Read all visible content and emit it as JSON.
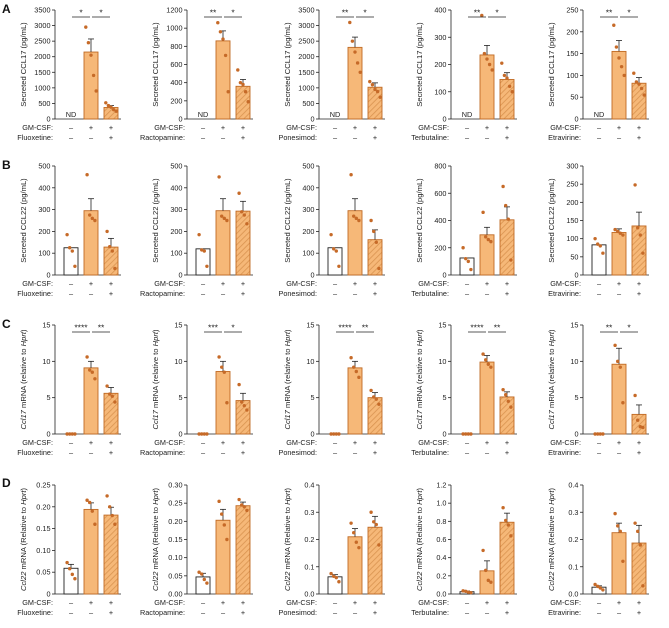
{
  "colors": {
    "orange": "#f6b878",
    "orange_edge": "#c06a24",
    "dot": "#c66a28",
    "white_bar": "#ffffff",
    "dark_edge": "#222222",
    "hatch": "#d99350"
  },
  "panel_labels": [
    "A",
    "B",
    "C",
    "D"
  ],
  "row_labels": {
    "gmcsf": "GM-CSF:"
  },
  "signs": {
    "minus": "–",
    "plus": "+"
  },
  "nd_label": "ND",
  "chart_data": [
    {
      "type": "bar",
      "panel": "A",
      "drug": "Fluoxetine:",
      "ylabel": "Secreted CCL17 (pg/mL)",
      "ylabel_italic": "",
      "ylim": [
        0,
        3500
      ],
      "ticks": [
        "0",
        "500",
        "1000",
        "1500",
        "2000",
        "2500",
        "3000",
        "3500"
      ],
      "categories": [
        "GM-CSF –, Drug –",
        "GM-CSF +, Drug –",
        "GM-CSF +, Drug +"
      ],
      "values": [
        0,
        2150,
        370
      ],
      "errors": [
        0,
        420,
        60
      ],
      "points": [
        [],
        [
          2950,
          2450,
          2050,
          1400,
          900
        ],
        [
          520,
          430,
          380,
          300,
          250
        ]
      ],
      "nd": true,
      "sig": [
        [
          "*",
          1,
          2
        ],
        [
          "*",
          2,
          3
        ]
      ]
    },
    {
      "type": "bar",
      "panel": "A",
      "drug": "Ractopamine:",
      "ylabel": "Secreted CCL17 (pg/mL)",
      "ylabel_italic": "",
      "ylim": [
        0,
        1200
      ],
      "ticks": [
        "0",
        "200",
        "400",
        "600",
        "800",
        "1000",
        "1200"
      ],
      "categories": [
        "GM-CSF –, Drug –",
        "GM-CSF +, Drug –",
        "GM-CSF +, Drug +"
      ],
      "values": [
        0,
        860,
        360
      ],
      "errors": [
        0,
        110,
        75
      ],
      "points": [
        [],
        [
          1060,
          960,
          880,
          700,
          300
        ],
        [
          540,
          400,
          380,
          300,
          190
        ]
      ],
      "nd": true,
      "sig": [
        [
          "**",
          1,
          2
        ],
        [
          "*",
          2,
          3
        ]
      ]
    },
    {
      "type": "bar",
      "panel": "A",
      "drug": "Ponesimod:",
      "ylabel": "Secreted CCL17 (pg/mL)",
      "ylabel_italic": "",
      "ylim": [
        0,
        3500
      ],
      "ticks": [
        "0",
        "500",
        "1000",
        "1500",
        "2000",
        "2500",
        "3000",
        "3500"
      ],
      "categories": [
        "GM-CSF –, Drug –",
        "GM-CSF +, Drug –",
        "GM-CSF +, Drug +"
      ],
      "values": [
        0,
        2300,
        1020
      ],
      "errors": [
        0,
        330,
        140
      ],
      "points": [
        [],
        [
          3100,
          2500,
          2150,
          1800,
          1500
        ],
        [
          1200,
          1100,
          950,
          880,
          700
        ]
      ],
      "nd": true,
      "sig": [
        [
          "**",
          1,
          2
        ],
        [
          "*",
          2,
          3
        ]
      ]
    },
    {
      "type": "bar",
      "panel": "A",
      "drug": "Terbutaline:",
      "ylabel": "Secreted CCL17 (pg/mL)",
      "ylabel_italic": "",
      "ylim": [
        0,
        400
      ],
      "ticks": [
        "0",
        "100",
        "200",
        "300",
        "400"
      ],
      "categories": [
        "GM-CSF –, Drug –",
        "GM-CSF +, Drug –",
        "GM-CSF +, Drug +"
      ],
      "values": [
        0,
        235,
        145
      ],
      "errors": [
        0,
        35,
        25
      ],
      "points": [
        [],
        [
          380,
          240,
          220,
          200,
          180
        ],
        [
          205,
          160,
          150,
          120,
          100
        ]
      ],
      "nd": true,
      "sig": [
        [
          "**",
          1,
          2
        ],
        [
          "*",
          2,
          3
        ]
      ]
    },
    {
      "type": "bar",
      "panel": "A",
      "drug": "Etravirine:",
      "ylabel": "Secreted CCL17 (pg/mL)",
      "ylabel_italic": "",
      "ylim": [
        0,
        250
      ],
      "ticks": [
        "0",
        "50",
        "100",
        "150",
        "200",
        "250"
      ],
      "categories": [
        "GM-CSF –, Drug –",
        "GM-CSF +, Drug –",
        "GM-CSF +, Drug +"
      ],
      "values": [
        0,
        155,
        82
      ],
      "errors": [
        0,
        25,
        13
      ],
      "points": [
        [],
        [
          215,
          165,
          140,
          120,
          100
        ],
        [
          105,
          85,
          80,
          70,
          55
        ]
      ],
      "nd": true,
      "sig": [
        [
          "**",
          1,
          2
        ],
        [
          "*",
          2,
          3
        ]
      ]
    },
    {
      "type": "bar",
      "panel": "B",
      "drug": "Fluoxetine:",
      "ylabel": "Secreted CCL22 (pg/mL)",
      "ylabel_italic": "",
      "ylim": [
        0,
        500
      ],
      "ticks": [
        "0",
        "100",
        "200",
        "300",
        "400",
        "500"
      ],
      "categories": [
        "GM-CSF –, Drug –",
        "GM-CSF +, Drug –",
        "GM-CSF +, Drug +"
      ],
      "values": [
        125,
        295,
        128
      ],
      "errors": [
        0,
        55,
        40
      ],
      "points": [
        [
          185,
          125,
          110,
          40
        ],
        [
          460,
          275,
          260,
          250
        ],
        [
          200,
          130,
          110,
          30
        ]
      ],
      "nd": false,
      "sig": []
    },
    {
      "type": "bar",
      "panel": "B",
      "drug": "Ractopamine:",
      "ylabel": "Secreted CCL22 (pg/mL)",
      "ylabel_italic": "",
      "ylim": [
        0,
        500
      ],
      "ticks": [
        "0",
        "100",
        "200",
        "300",
        "400",
        "500"
      ],
      "categories": [
        "GM-CSF –, Drug –",
        "GM-CSF +, Drug –",
        "GM-CSF +, Drug +"
      ],
      "values": [
        120,
        295,
        293
      ],
      "errors": [
        0,
        55,
        45
      ],
      "points": [
        [
          185,
          115,
          110,
          40
        ],
        [
          450,
          270,
          260,
          250
        ],
        [
          375,
          290,
          275,
          235
        ]
      ],
      "nd": false,
      "sig": []
    },
    {
      "type": "bar",
      "panel": "B",
      "drug": "Ponesimod:",
      "ylabel": "Secreted CCL22 (pg/mL)",
      "ylabel_italic": "",
      "ylim": [
        0,
        500
      ],
      "ticks": [
        "0",
        "100",
        "200",
        "300",
        "400",
        "500"
      ],
      "categories": [
        "GM-CSF –, Drug –",
        "GM-CSF +, Drug –",
        "GM-CSF +, Drug +"
      ],
      "values": [
        125,
        295,
        162
      ],
      "errors": [
        0,
        55,
        45
      ],
      "points": [
        [
          185,
          120,
          110,
          40
        ],
        [
          460,
          270,
          260,
          250
        ],
        [
          250,
          200,
          150,
          30
        ]
      ],
      "nd": false,
      "sig": []
    },
    {
      "type": "bar",
      "panel": "B",
      "drug": "Terbutaline:",
      "ylabel": "Secreted CCL22 (pg/mL)",
      "ylabel_italic": "",
      "ylim": [
        0,
        800
      ],
      "ticks": [
        "0",
        "200",
        "400",
        "600",
        "800"
      ],
      "categories": [
        "GM-CSF –, Drug –",
        "GM-CSF +, Drug –",
        "GM-CSF +, Drug +"
      ],
      "values": [
        125,
        295,
        405
      ],
      "errors": [
        0,
        55,
        95
      ],
      "points": [
        [
          200,
          120,
          100,
          40
        ],
        [
          460,
          280,
          260,
          245
        ],
        [
          650,
          510,
          410,
          110
        ]
      ],
      "nd": false,
      "sig": []
    },
    {
      "type": "bar",
      "panel": "B",
      "drug": "Etravirine:",
      "ylabel": "Secreted CCL22 (pg/mL)",
      "ylabel_italic": "",
      "ylim": [
        0,
        300
      ],
      "ticks": [
        "0",
        "50",
        "100",
        "150",
        "200",
        "250",
        "300"
      ],
      "categories": [
        "GM-CSF –, Drug –",
        "GM-CSF +, Drug –",
        "GM-CSF +, Drug +"
      ],
      "values": [
        83,
        117,
        135
      ],
      "errors": [
        0,
        10,
        38
      ],
      "points": [
        [
          100,
          85,
          80,
          60
        ],
        [
          125,
          120,
          115,
          110
        ],
        [
          248,
          130,
          110,
          60
        ]
      ],
      "nd": false,
      "sig": []
    },
    {
      "type": "bar",
      "panel": "C",
      "drug": "Fluoxetine:",
      "ylabel": " mRNA (relative to ",
      "ylabel_italic": "Ccl17|Hprt",
      "ylim": [
        0,
        15
      ],
      "ticks": [
        "0",
        "5",
        "10",
        "15"
      ],
      "categories": [
        "GM-CSF –, Drug –",
        "GM-CSF +, Drug –",
        "GM-CSF +, Drug +"
      ],
      "values": [
        0,
        9.1,
        5.6
      ],
      "errors": [
        0,
        0.9,
        0.8
      ],
      "points": [
        [
          0,
          0,
          0,
          0
        ],
        [
          10.6,
          8.8,
          8.5,
          7.6
        ],
        [
          6.6,
          5.5,
          5.2,
          4.4
        ]
      ],
      "nd": false,
      "sig": [
        [
          "****",
          1,
          2
        ],
        [
          "**",
          2,
          3
        ]
      ]
    },
    {
      "type": "bar",
      "panel": "C",
      "drug": "Ractopamine:",
      "ylabel": " mRNA (relative to ",
      "ylabel_italic": "Ccl17|Hprt",
      "ylim": [
        0,
        15
      ],
      "ticks": [
        "0",
        "5",
        "10",
        "15"
      ],
      "categories": [
        "GM-CSF –, Drug –",
        "GM-CSF +, Drug –",
        "GM-CSF +, Drug +"
      ],
      "values": [
        0,
        8.6,
        4.6
      ],
      "errors": [
        0,
        1.4,
        1.0
      ],
      "points": [
        [
          0,
          0,
          0,
          0
        ],
        [
          10.6,
          9.2,
          8.5,
          4.3
        ],
        [
          6.8,
          4.4,
          3.9,
          3.3
        ]
      ],
      "nd": false,
      "sig": [
        [
          "***",
          1,
          2
        ],
        [
          "*",
          2,
          3
        ]
      ]
    },
    {
      "type": "bar",
      "panel": "C",
      "drug": "Ponesimod:",
      "ylabel": " mRNA (relative to ",
      "ylabel_italic": "Ccl17|Hprt",
      "ylim": [
        0,
        15
      ],
      "ticks": [
        "0",
        "5",
        "10",
        "15"
      ],
      "categories": [
        "GM-CSF –, Drug –",
        "GM-CSF +, Drug –",
        "GM-CSF +, Drug +"
      ],
      "values": [
        0,
        9.1,
        5.0
      ],
      "errors": [
        0,
        0.9,
        0.7
      ],
      "points": [
        [
          0,
          0,
          0,
          0
        ],
        [
          10.5,
          9.2,
          8.6,
          7.8
        ],
        [
          6.0,
          5.1,
          4.8,
          4.1
        ]
      ],
      "nd": false,
      "sig": [
        [
          "****",
          1,
          2
        ],
        [
          "**",
          2,
          3
        ]
      ]
    },
    {
      "type": "bar",
      "panel": "C",
      "drug": "Terbutaline:",
      "ylabel": " mRNA (relative to ",
      "ylabel_italic": "Ccl17|Hprt",
      "ylim": [
        0,
        15
      ],
      "ticks": [
        "0",
        "5",
        "10",
        "15"
      ],
      "categories": [
        "GM-CSF –, Drug –",
        "GM-CSF +, Drug –",
        "GM-CSF +, Drug +"
      ],
      "values": [
        0,
        9.9,
        5.1
      ],
      "errors": [
        0,
        0.9,
        0.7
      ],
      "points": [
        [
          0,
          0,
          0,
          0
        ],
        [
          11.0,
          10.2,
          9.6,
          9.2
        ],
        [
          6.1,
          5.4,
          4.5,
          3.7
        ]
      ],
      "nd": false,
      "sig": [
        [
          "****",
          1,
          2
        ],
        [
          "**",
          2,
          3
        ]
      ]
    },
    {
      "type": "bar",
      "panel": "C",
      "drug": "Etravirine:",
      "ylabel": " mRNA (relative to ",
      "ylabel_italic": "Ccl17|Hprt",
      "ylim": [
        0,
        15
      ],
      "ticks": [
        "0",
        "5",
        "10",
        "15"
      ],
      "categories": [
        "GM-CSF –, Drug –",
        "GM-CSF +, Drug –",
        "GM-CSF +, Drug +"
      ],
      "values": [
        0,
        9.6,
        2.7
      ],
      "errors": [
        0,
        2.2,
        1.3
      ],
      "points": [
        [
          0,
          0,
          0,
          0
        ],
        [
          12.2,
          10.0,
          9.2,
          4.3
        ],
        [
          5.3,
          1.9,
          1.0,
          0.9
        ]
      ],
      "nd": false,
      "sig": [
        [
          "**",
          1,
          2
        ],
        [
          "*",
          2,
          3
        ]
      ]
    },
    {
      "type": "bar",
      "panel": "D",
      "drug": "Fluoxetine:",
      "ylabel": " mRNA (Relative to ",
      "ylabel_italic": "Ccl22|Hprt",
      "ylim": [
        0,
        0.25
      ],
      "ticks": [
        "0",
        "0.05",
        "0.10",
        "0.15",
        "0.20",
        "0.25"
      ],
      "categories": [
        "GM-CSF –, Drug –",
        "GM-CSF +, Drug –",
        "GM-CSF +, Drug +"
      ],
      "values": [
        0.059,
        0.194,
        0.181
      ],
      "errors": [
        0.009,
        0.015,
        0.018
      ],
      "points": [
        [
          0.072,
          0.058,
          0.045,
          0.035
        ],
        [
          0.215,
          0.21,
          0.19,
          0.16
        ],
        [
          0.225,
          0.2,
          0.18,
          0.16
        ]
      ],
      "nd": false,
      "sig": []
    },
    {
      "type": "bar",
      "panel": "D",
      "drug": "Ractopamine:",
      "ylabel": " mRNA (Relative to ",
      "ylabel_italic": "Ccl22|Hprt",
      "ylim": [
        0,
        0.3
      ],
      "ticks": [
        "0.00",
        "0.05",
        "0.10",
        "0.15",
        "0.20",
        "0.25",
        "0.30"
      ],
      "categories": [
        "GM-CSF –, Drug –",
        "GM-CSF +, Drug –",
        "GM-CSF +, Drug +"
      ],
      "values": [
        0.047,
        0.203,
        0.243
      ],
      "errors": [
        0.01,
        0.03,
        0.01
      ],
      "points": [
        [
          0.06,
          0.055,
          0.04,
          0.03
        ],
        [
          0.255,
          0.22,
          0.19,
          0.15
        ],
        [
          0.26,
          0.245,
          0.24,
          0.23
        ]
      ],
      "nd": false,
      "sig": []
    },
    {
      "type": "bar",
      "panel": "D",
      "drug": "Ponesimod:",
      "ylabel": " mRNA (Relative to ",
      "ylabel_italic": "Ccl22|Hprt",
      "ylim": [
        0,
        0.4
      ],
      "ticks": [
        "0.0",
        "0.1",
        "0.2",
        "0.3",
        "0.4"
      ],
      "categories": [
        "GM-CSF –, Drug –",
        "GM-CSF +, Drug –",
        "GM-CSF +, Drug +"
      ],
      "values": [
        0.063,
        0.21,
        0.245
      ],
      "errors": [
        0.008,
        0.03,
        0.04
      ],
      "points": [
        [
          0.075,
          0.065,
          0.06,
          0.045
        ],
        [
          0.26,
          0.225,
          0.19,
          0.17
        ],
        [
          0.3,
          0.265,
          0.255,
          0.18
        ]
      ],
      "nd": false,
      "sig": []
    },
    {
      "type": "bar",
      "panel": "D",
      "drug": "Terbutaline:",
      "ylabel": " mRNA (Relative to ",
      "ylabel_italic": "Ccl22|Hprt",
      "ylim": [
        0,
        1.2
      ],
      "ticks": [
        "0.0",
        "0.2",
        "0.4",
        "0.6",
        "0.8",
        "1.0",
        "1.2"
      ],
      "categories": [
        "GM-CSF –, Drug –",
        "GM-CSF +, Drug –",
        "GM-CSF +, Drug +"
      ],
      "values": [
        0.025,
        0.255,
        0.79
      ],
      "errors": [
        0.008,
        0.11,
        0.1
      ],
      "points": [
        [
          0.035,
          0.03,
          0.02,
          0.015
        ],
        [
          0.48,
          0.26,
          0.15,
          0.13
        ],
        [
          0.95,
          0.81,
          0.76,
          0.64
        ]
      ],
      "nd": false,
      "sig": []
    },
    {
      "type": "bar",
      "panel": "D",
      "drug": "Etravirine:",
      "ylabel": " mRNA (Relative to ",
      "ylabel_italic": "Ccl22|Hprt",
      "ylim": [
        0,
        0.4
      ],
      "ticks": [
        "0.0",
        "0.1",
        "0.2",
        "0.3",
        "0.4"
      ],
      "categories": [
        "GM-CSF –, Drug –",
        "GM-CSF +, Drug –",
        "GM-CSF +, Drug +"
      ],
      "values": [
        0.025,
        0.225,
        0.187
      ],
      "errors": [
        0.005,
        0.035,
        0.065
      ],
      "points": [
        [
          0.035,
          0.028,
          0.022,
          0.015
        ],
        [
          0.295,
          0.25,
          0.23,
          0.12
        ],
        [
          0.26,
          0.23,
          0.18,
          0.03
        ]
      ],
      "nd": false,
      "sig": []
    }
  ]
}
